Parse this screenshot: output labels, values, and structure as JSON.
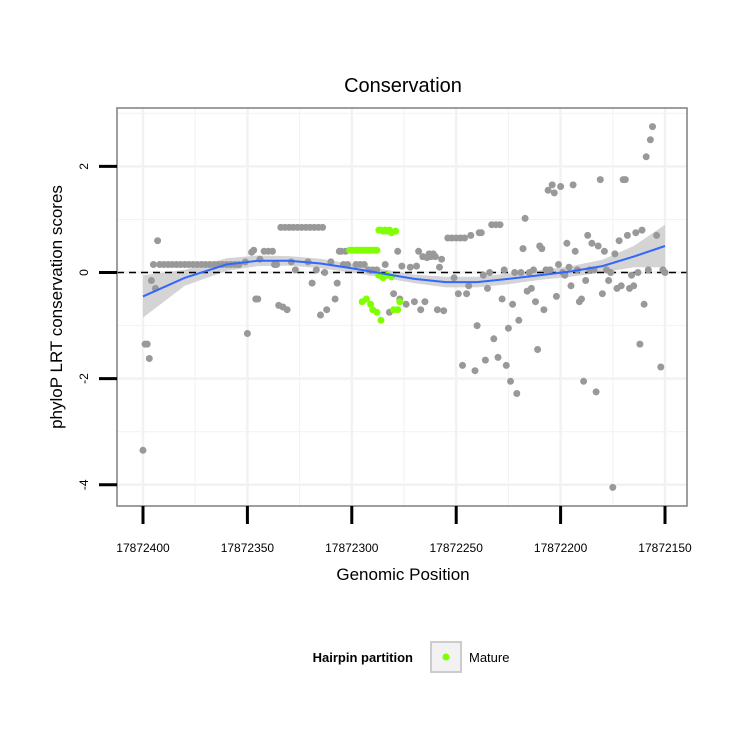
{
  "chart_data": {
    "type": "scatter",
    "title": "Conservation",
    "xlabel": "Genomic Position",
    "ylabel": "phyloP LRT conservation scores",
    "x_reversed": true,
    "xlim": [
      17872400,
      17872150
    ],
    "ylim": [
      -4.4,
      3.1
    ],
    "xticks": [
      17872400,
      17872350,
      17872300,
      17872250,
      17872200,
      17872150
    ],
    "xtick_labels": [
      "17872400",
      "17872350",
      "17872300",
      "17872250",
      "17872200",
      "17872150"
    ],
    "yticks": [
      -4,
      -2,
      0,
      2
    ],
    "ytick_labels": [
      "-4",
      "-2",
      "0",
      "2"
    ],
    "grid": true,
    "reference_line": {
      "y": 0,
      "style": "dashed"
    },
    "legend": {
      "position": "bottom",
      "title": "Hairpin partition",
      "entries": [
        {
          "label": "Mature",
          "color": "#7fff00"
        }
      ]
    },
    "colors": {
      "other": "#999999",
      "mature": "#7fff00",
      "smooth": "#3366ff",
      "band": "#cccccc",
      "panel_border": "#7f7f7f",
      "grid": "#f2f2f2"
    },
    "series": [
      {
        "name": "",
        "color": "#999999",
        "points": [
          [
            17872400,
            -3.35
          ],
          [
            17872399,
            -1.35
          ],
          [
            17872398,
            -1.35
          ],
          [
            17872397,
            -1.62
          ],
          [
            17872396,
            -0.15
          ],
          [
            17872395,
            0.15
          ],
          [
            17872394,
            -0.3
          ],
          [
            17872393,
            0.6
          ],
          [
            17872392,
            0.15
          ],
          [
            17872390,
            0.15
          ],
          [
            17872388,
            0.15
          ],
          [
            17872386,
            0.15
          ],
          [
            17872384,
            0.15
          ],
          [
            17872382,
            0.15
          ],
          [
            17872380,
            0.15
          ],
          [
            17872378,
            0.15
          ],
          [
            17872376,
            0.15
          ],
          [
            17872374,
            0.15
          ],
          [
            17872372,
            0.15
          ],
          [
            17872370,
            0.15
          ],
          [
            17872368,
            0.15
          ],
          [
            17872366,
            0.15
          ],
          [
            17872364,
            0.15
          ],
          [
            17872362,
            0.15
          ],
          [
            17872360,
            0.15
          ],
          [
            17872358,
            0.15
          ],
          [
            17872356,
            0.15
          ],
          [
            17872354,
            0.15
          ],
          [
            17872351,
            0.2
          ],
          [
            17872350,
            -1.15
          ],
          [
            17872348,
            0.38
          ],
          [
            17872347,
            0.42
          ],
          [
            17872346,
            -0.5
          ],
          [
            17872345,
            -0.5
          ],
          [
            17872344,
            0.25
          ],
          [
            17872342,
            0.4
          ],
          [
            17872340,
            0.4
          ],
          [
            17872338,
            0.4
          ],
          [
            17872337,
            0.15
          ],
          [
            17872336,
            0.15
          ],
          [
            17872335,
            -0.62
          ],
          [
            17872334,
            0.85
          ],
          [
            17872333,
            -0.65
          ],
          [
            17872332,
            0.85
          ],
          [
            17872331,
            -0.7
          ],
          [
            17872330,
            0.85
          ],
          [
            17872329,
            0.2
          ],
          [
            17872328,
            0.85
          ],
          [
            17872327,
            0.05
          ],
          [
            17872326,
            0.85
          ],
          [
            17872324,
            0.85
          ],
          [
            17872322,
            0.85
          ],
          [
            17872321,
            0.2
          ],
          [
            17872320,
            0.85
          ],
          [
            17872319,
            -0.2
          ],
          [
            17872318,
            0.85
          ],
          [
            17872317,
            0.05
          ],
          [
            17872316,
            0.85
          ],
          [
            17872315,
            -0.8
          ],
          [
            17872314,
            0.85
          ],
          [
            17872313,
            0.0
          ],
          [
            17872312,
            -0.7
          ],
          [
            17872310,
            0.2
          ],
          [
            17872308,
            -0.5
          ],
          [
            17872307,
            -0.2
          ],
          [
            17872306,
            0.4
          ],
          [
            17872305,
            0.4
          ],
          [
            17872304,
            0.15
          ],
          [
            17872303,
            0.4
          ],
          [
            17872302,
            0.15
          ],
          [
            17872298,
            0.15
          ],
          [
            17872296,
            0.15
          ],
          [
            17872294,
            0.15
          ],
          [
            17872292,
            0.05
          ],
          [
            17872290,
            0.05
          ],
          [
            17872288,
            0.05
          ],
          [
            17872284,
            0.15
          ],
          [
            17872282,
            -0.75
          ],
          [
            17872280,
            -0.4
          ],
          [
            17872278,
            0.4
          ],
          [
            17872277,
            -0.5
          ],
          [
            17872276,
            0.12
          ],
          [
            17872274,
            -0.6
          ],
          [
            17872272,
            0.1
          ],
          [
            17872270,
            -0.55
          ],
          [
            17872269,
            0.12
          ],
          [
            17872268,
            0.4
          ],
          [
            17872267,
            -0.7
          ],
          [
            17872266,
            0.3
          ],
          [
            17872265,
            -0.55
          ],
          [
            17872264,
            0.28
          ],
          [
            17872263,
            0.35
          ],
          [
            17872262,
            0.3
          ],
          [
            17872261,
            0.35
          ],
          [
            17872260,
            0.3
          ],
          [
            17872259,
            -0.7
          ],
          [
            17872258,
            0.1
          ],
          [
            17872257,
            0.25
          ],
          [
            17872256,
            -0.72
          ],
          [
            17872254,
            0.65
          ],
          [
            17872252,
            0.65
          ],
          [
            17872251,
            -0.1
          ],
          [
            17872250,
            0.65
          ],
          [
            17872249,
            -0.4
          ],
          [
            17872248,
            0.65
          ],
          [
            17872247,
            -1.75
          ],
          [
            17872246,
            0.65
          ],
          [
            17872245,
            -0.4
          ],
          [
            17872244,
            -0.25
          ],
          [
            17872243,
            0.7
          ],
          [
            17872241,
            -1.85
          ],
          [
            17872240,
            -1.0
          ],
          [
            17872239,
            0.75
          ],
          [
            17872238,
            0.75
          ],
          [
            17872237,
            -0.05
          ],
          [
            17872236,
            -1.65
          ],
          [
            17872235,
            -0.3
          ],
          [
            17872234,
            0.0
          ],
          [
            17872233,
            0.9
          ],
          [
            17872232,
            -1.25
          ],
          [
            17872231,
            0.9
          ],
          [
            17872230,
            -1.6
          ],
          [
            17872229,
            0.9
          ],
          [
            17872228,
            -0.5
          ],
          [
            17872227,
            0.05
          ],
          [
            17872226,
            -1.75
          ],
          [
            17872225,
            -1.05
          ],
          [
            17872224,
            -2.05
          ],
          [
            17872223,
            -0.6
          ],
          [
            17872222,
            0.0
          ],
          [
            17872221,
            -2.28
          ],
          [
            17872220,
            -0.9
          ],
          [
            17872219,
            0.0
          ],
          [
            17872218,
            0.45
          ],
          [
            17872217,
            1.02
          ],
          [
            17872216,
            -0.35
          ],
          [
            17872215,
            0.0
          ],
          [
            17872214,
            -0.3
          ],
          [
            17872213,
            0.05
          ],
          [
            17872212,
            -0.55
          ],
          [
            17872211,
            -1.45
          ],
          [
            17872210,
            0.5
          ],
          [
            17872209,
            0.45
          ],
          [
            17872208,
            -0.7
          ],
          [
            17872207,
            0.05
          ],
          [
            17872206,
            1.55
          ],
          [
            17872205,
            0.05
          ],
          [
            17872204,
            1.65
          ],
          [
            17872203,
            1.5
          ],
          [
            17872202,
            -0.45
          ],
          [
            17872201,
            0.15
          ],
          [
            17872200,
            1.62
          ],
          [
            17872199,
            0.0
          ],
          [
            17872198,
            -0.05
          ],
          [
            17872197,
            0.55
          ],
          [
            17872196,
            0.1
          ],
          [
            17872195,
            -0.25
          ],
          [
            17872194,
            1.65
          ],
          [
            17872193,
            0.4
          ],
          [
            17872192,
            0.05
          ],
          [
            17872191,
            -0.55
          ],
          [
            17872190,
            -0.5
          ],
          [
            17872189,
            -2.05
          ],
          [
            17872188,
            -0.15
          ],
          [
            17872187,
            0.7
          ],
          [
            17872186,
            0.05
          ],
          [
            17872185,
            0.55
          ],
          [
            17872184,
            0.05
          ],
          [
            17872183,
            -2.25
          ],
          [
            17872182,
            0.5
          ],
          [
            17872181,
            1.75
          ],
          [
            17872180,
            -0.4
          ],
          [
            17872179,
            0.4
          ],
          [
            17872178,
            0.05
          ],
          [
            17872177,
            -0.15
          ],
          [
            17872176,
            0.0
          ],
          [
            17872175,
            -4.05
          ],
          [
            17872174,
            0.35
          ],
          [
            17872173,
            -0.3
          ],
          [
            17872172,
            0.6
          ],
          [
            17872171,
            -0.25
          ],
          [
            17872170,
            1.75
          ],
          [
            17872169,
            1.75
          ],
          [
            17872168,
            0.7
          ],
          [
            17872167,
            -0.3
          ],
          [
            17872166,
            -0.05
          ],
          [
            17872165,
            -0.25
          ],
          [
            17872164,
            0.75
          ],
          [
            17872163,
            0.0
          ],
          [
            17872162,
            -1.35
          ],
          [
            17872161,
            0.8
          ],
          [
            17872160,
            -0.6
          ],
          [
            17872159,
            2.18
          ],
          [
            17872158,
            0.05
          ],
          [
            17872157,
            2.5
          ],
          [
            17872156,
            2.75
          ],
          [
            17872154,
            0.7
          ],
          [
            17872152,
            -1.78
          ],
          [
            17872151,
            0.05
          ],
          [
            17872150,
            0.0
          ]
        ]
      },
      {
        "name": "Mature",
        "color": "#7fff00",
        "points": [
          [
            17872301,
            0.42
          ],
          [
            17872300,
            0.42
          ],
          [
            17872299,
            0.42
          ],
          [
            17872298,
            0.42
          ],
          [
            17872297,
            0.42
          ],
          [
            17872296,
            0.42
          ],
          [
            17872295,
            0.42
          ],
          [
            17872294,
            0.42
          ],
          [
            17872293,
            0.42
          ],
          [
            17872292,
            0.42
          ],
          [
            17872291,
            0.42
          ],
          [
            17872290,
            0.42
          ],
          [
            17872289,
            0.42
          ],
          [
            17872288,
            0.42
          ],
          [
            17872295,
            -0.55
          ],
          [
            17872293,
            -0.5
          ],
          [
            17872291,
            -0.6
          ],
          [
            17872290,
            -0.7
          ],
          [
            17872288,
            -0.75
          ],
          [
            17872287,
            0.8
          ],
          [
            17872286,
            0.8
          ],
          [
            17872285,
            0.78
          ],
          [
            17872287,
            -0.05
          ],
          [
            17872286,
            -0.9
          ],
          [
            17872285,
            -0.1
          ],
          [
            17872284,
            0.8
          ],
          [
            17872283,
            0.78
          ],
          [
            17872283,
            -0.05
          ],
          [
            17872282,
            0.8
          ],
          [
            17872281,
            0.75
          ],
          [
            17872281,
            -0.08
          ],
          [
            17872280,
            -0.7
          ],
          [
            17872279,
            0.78
          ],
          [
            17872278,
            -0.7
          ],
          [
            17872277,
            -0.55
          ]
        ]
      }
    ],
    "smooth": {
      "x": [
        17872400,
        17872380,
        17872360,
        17872345,
        17872330,
        17872315,
        17872300,
        17872285,
        17872270,
        17872255,
        17872240,
        17872225,
        17872210,
        17872195,
        17872180,
        17872165,
        17872150
      ],
      "y": [
        -0.45,
        -0.1,
        0.15,
        0.22,
        0.22,
        0.17,
        0.08,
        -0.02,
        -0.12,
        -0.18,
        -0.18,
        -0.12,
        -0.05,
        0.02,
        0.12,
        0.3,
        0.5
      ],
      "lower": [
        -0.85,
        -0.25,
        0.03,
        0.12,
        0.13,
        0.08,
        0.0,
        -0.1,
        -0.2,
        -0.28,
        -0.28,
        -0.22,
        -0.14,
        -0.08,
        0.0,
        0.1,
        0.1
      ],
      "upper": [
        -0.05,
        0.05,
        0.27,
        0.32,
        0.31,
        0.26,
        0.16,
        0.06,
        -0.04,
        -0.08,
        -0.08,
        -0.02,
        0.04,
        0.12,
        0.24,
        0.5,
        0.9
      ]
    }
  }
}
